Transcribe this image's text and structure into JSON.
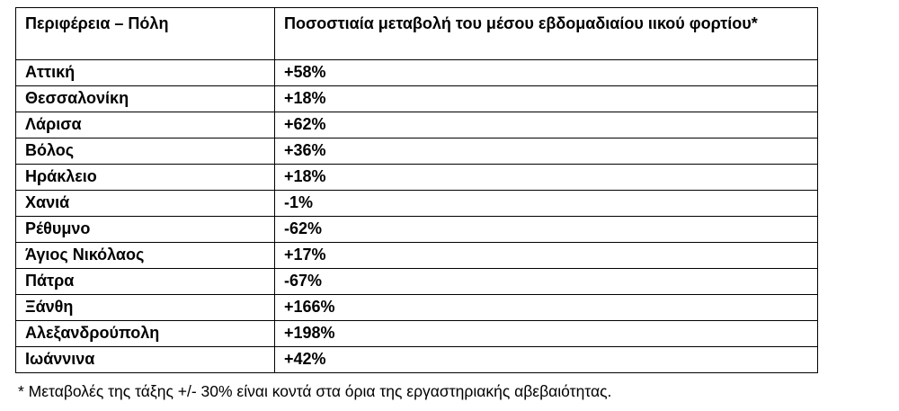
{
  "table": {
    "headers": [
      "Περιφέρεια – Πόλη",
      "Ποσοστιαία μεταβολή του μέσου εβδομαδιαίου ιικού φορτίου*"
    ],
    "rows": [
      [
        "Αττική",
        "+58%"
      ],
      [
        "Θεσσαλονίκη",
        "+18%"
      ],
      [
        "Λάρισα",
        "+62%"
      ],
      [
        "Βόλος",
        "+36%"
      ],
      [
        "Ηράκλειο",
        "+18%"
      ],
      [
        "Χανιά",
        "-1%"
      ],
      [
        "Ρέθυμνο",
        "-62%"
      ],
      [
        "Άγιος Νικόλαος",
        "+17%"
      ],
      [
        "Πάτρα",
        "-67%"
      ],
      [
        "Ξάνθη",
        "+166%"
      ],
      [
        "Αλεξανδρούπολη",
        "+198%"
      ],
      [
        "Ιωάννινα",
        "+42%"
      ]
    ]
  },
  "footnote": "* Μεταβολές της τάξης +/- 30% είναι κοντά στα όρια της εργαστηριακής αβεβαιότητας."
}
